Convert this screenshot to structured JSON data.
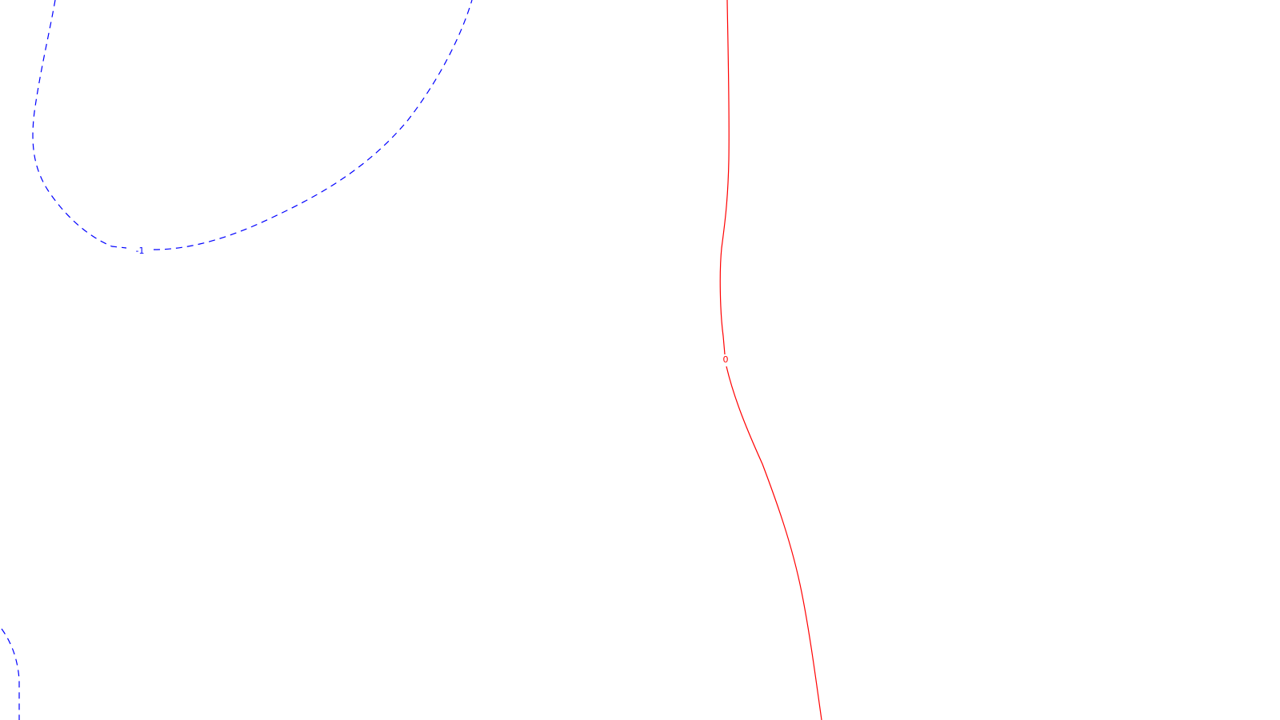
{
  "chart_data": {
    "type": "contour",
    "title": "",
    "xlabel": "",
    "ylabel": "",
    "grid": false,
    "legend": "none",
    "levels": [
      {
        "level": -1,
        "label": "-1",
        "color": "#0000ff",
        "style": "dashed"
      },
      {
        "level": 0,
        "label": "0",
        "color": "#ff0000",
        "style": "solid"
      }
    ]
  }
}
